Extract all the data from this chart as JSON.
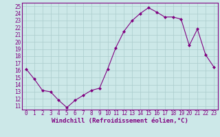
{
  "x": [
    0,
    1,
    2,
    3,
    4,
    5,
    6,
    7,
    8,
    9,
    10,
    11,
    12,
    13,
    14,
    15,
    16,
    17,
    18,
    19,
    20,
    21,
    22,
    23
  ],
  "y": [
    16.2,
    14.8,
    13.2,
    13.0,
    11.8,
    10.8,
    11.8,
    12.5,
    13.2,
    13.5,
    16.2,
    19.2,
    21.5,
    23.0,
    24.0,
    24.8,
    24.2,
    23.5,
    23.5,
    23.2,
    19.5,
    21.8,
    18.2,
    16.5
  ],
  "line_color": "#800080",
  "marker": "D",
  "marker_size": 2,
  "background_color": "#cce8e8",
  "grid_color": "#aacccc",
  "xlabel": "Windchill (Refroidissement éolien,°C)",
  "xlim": [
    -0.5,
    23.5
  ],
  "ylim": [
    10.5,
    25.5
  ],
  "yticks": [
    11,
    12,
    13,
    14,
    15,
    16,
    17,
    18,
    19,
    20,
    21,
    22,
    23,
    24,
    25
  ],
  "xticks": [
    0,
    1,
    2,
    3,
    4,
    5,
    6,
    7,
    8,
    9,
    10,
    11,
    12,
    13,
    14,
    15,
    16,
    17,
    18,
    19,
    20,
    21,
    22,
    23
  ],
  "axis_color": "#800080",
  "tick_fontsize": 5.5,
  "xlabel_fontsize": 6.5,
  "linewidth": 0.8
}
